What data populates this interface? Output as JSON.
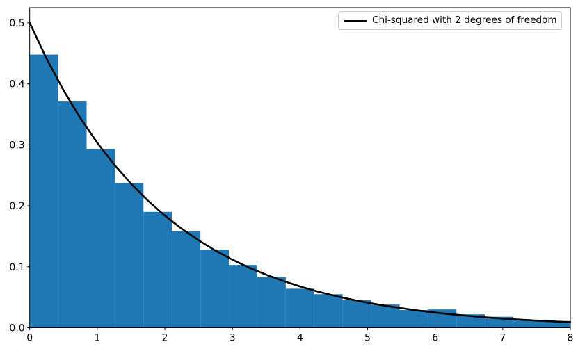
{
  "figure": {
    "background_color": "#ffffff"
  },
  "chart_data": {
    "type": "histogram+line",
    "title": "",
    "xlabel": "",
    "ylabel": "",
    "grid": false,
    "xlim": [
      0,
      8
    ],
    "ylim": [
      0,
      0.525
    ],
    "xticks": [
      "0",
      "1",
      "2",
      "3",
      "4",
      "5",
      "6",
      "7",
      "8"
    ],
    "xtick_values": [
      0,
      1,
      2,
      3,
      4,
      5,
      6,
      7,
      8
    ],
    "yticks": [
      "0.0",
      "0.1",
      "0.2",
      "0.3",
      "0.4",
      "0.5"
    ],
    "ytick_values": [
      0,
      0.1,
      0.2,
      0.3,
      0.4,
      0.5
    ],
    "legend": {
      "position": "upper right",
      "entries": [
        {
          "label": "Chi-squared with 2 degrees of freedom",
          "color": "#000000",
          "style": "line"
        }
      ]
    },
    "histogram": {
      "color": "#1f77b4",
      "bin_width": 0.421,
      "bin_edges": [
        0,
        0.421,
        0.842,
        1.263,
        1.684,
        2.105,
        2.526,
        2.947,
        3.368,
        3.789,
        4.21,
        4.631,
        5.052,
        5.473,
        5.894,
        6.315,
        6.736,
        7.157,
        7.578,
        7.999,
        8.42
      ],
      "densities": [
        0.448,
        0.371,
        0.293,
        0.237,
        0.19,
        0.158,
        0.128,
        0.103,
        0.083,
        0.064,
        0.055,
        0.045,
        0.038,
        0.029,
        0.03,
        0.022,
        0.018,
        0.013,
        0.011,
        0.01
      ]
    },
    "curve": {
      "label": "Chi-squared with 2 degrees of freedom",
      "color": "#000000",
      "line_width": 2.6,
      "x": [
        0,
        0.25,
        0.5,
        0.75,
        1,
        1.25,
        1.5,
        1.75,
        2,
        2.25,
        2.5,
        2.75,
        3,
        3.25,
        3.5,
        3.75,
        4,
        4.25,
        4.5,
        4.75,
        5,
        5.25,
        5.5,
        5.75,
        6,
        6.25,
        6.5,
        6.75,
        7,
        7.25,
        7.5,
        7.75,
        8
      ],
      "y": [
        0.5,
        0.4412,
        0.3894,
        0.3436,
        0.3033,
        0.2676,
        0.2362,
        0.2084,
        0.1839,
        0.1623,
        0.1433,
        0.1264,
        0.1116,
        0.0984,
        0.0869,
        0.0767,
        0.0677,
        0.0597,
        0.0527,
        0.0465,
        0.041,
        0.0362,
        0.032,
        0.0282,
        0.0249,
        0.022,
        0.0194,
        0.0171,
        0.0151,
        0.0133,
        0.0117,
        0.0104,
        0.0092
      ]
    }
  }
}
